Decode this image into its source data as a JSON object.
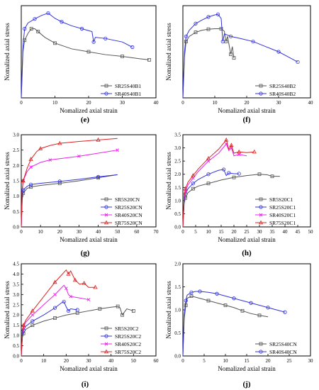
{
  "figure": {
    "panels": [
      {
        "letter": "(e)"
      },
      {
        "letter": "(f)"
      },
      {
        "letter": "(g)"
      },
      {
        "letter": "(h)"
      },
      {
        "letter": "(i)"
      },
      {
        "letter": "(j)"
      }
    ]
  },
  "chart_data": [
    {
      "panel": "e",
      "type": "line",
      "xlabel": "Nomalized axial strain",
      "ylabel": "Nomalized axial stress",
      "xlim": [
        0,
        40
      ],
      "ylim": [
        0,
        1.6
      ],
      "xticks": [
        0,
        10,
        20,
        30,
        40
      ],
      "yticks": [],
      "legend": {
        "position": "bottom-right"
      },
      "series": [
        {
          "name": "SR25S40B1",
          "color": "#555555",
          "marker": "square",
          "x": [
            0,
            0.5,
            1,
            2,
            3,
            4,
            5,
            7,
            10,
            15,
            20,
            25,
            30,
            35,
            38
          ],
          "y": [
            0,
            0.8,
            1.0,
            1.12,
            1.2,
            1.2,
            1.15,
            1.05,
            0.95,
            0.85,
            0.8,
            0.75,
            0.72,
            0.68,
            0.66
          ]
        },
        {
          "name": "SR40S40B1",
          "color": "#3333dd",
          "marker": "circle",
          "x": [
            0,
            0.5,
            1,
            2,
            4,
            6,
            8,
            10,
            12,
            15,
            18,
            21,
            21.5,
            22,
            25,
            30,
            33
          ],
          "y": [
            0,
            0.9,
            1.2,
            1.3,
            1.37,
            1.43,
            1.47,
            1.38,
            1.32,
            1.25,
            1.2,
            1.15,
            0.97,
            1.05,
            1.03,
            0.97,
            0.88
          ]
        }
      ]
    },
    {
      "panel": "f",
      "type": "line",
      "xlabel": "Nomalized axial strain",
      "ylabel": "Nomalized axial stress",
      "xlim": [
        0,
        40
      ],
      "ylim": [
        0,
        1.8
      ],
      "xticks": [
        0,
        10,
        20,
        30,
        40
      ],
      "yticks": [],
      "legend": {
        "position": "bottom-right"
      },
      "series": [
        {
          "name": "SR25S40B2",
          "color": "#555555",
          "marker": "square",
          "x": [
            0,
            0.5,
            1,
            2,
            4,
            6,
            8,
            10,
            12,
            13,
            13.5,
            14,
            15,
            15.5,
            16
          ],
          "y": [
            0,
            0.8,
            1.1,
            1.2,
            1.28,
            1.32,
            1.34,
            1.35,
            1.35,
            1.3,
            1.1,
            1.2,
            0.85,
            1.0,
            0.78
          ]
        },
        {
          "name": "SR40S40B2",
          "color": "#3333dd",
          "marker": "circle",
          "x": [
            0,
            0.5,
            1,
            2,
            4,
            6,
            8,
            10,
            11,
            12,
            12.5,
            13,
            15,
            18,
            22,
            26,
            30,
            33,
            36
          ],
          "y": [
            0,
            0.9,
            1.2,
            1.32,
            1.45,
            1.52,
            1.58,
            1.62,
            1.63,
            1.55,
            1.1,
            1.25,
            1.2,
            1.16,
            1.1,
            1.0,
            0.9,
            0.8,
            0.7
          ]
        }
      ]
    },
    {
      "panel": "g",
      "type": "line",
      "xlabel": "Nomalized axial strain",
      "ylabel": "Nomalized axial stress",
      "xlim": [
        0,
        70
      ],
      "ylim": [
        0,
        3.0
      ],
      "xticks": [
        0,
        10,
        20,
        30,
        40,
        50,
        60,
        70
      ],
      "yticks": [
        0,
        0.5,
        1.0,
        1.5,
        2.0,
        2.5,
        3.0
      ],
      "legend": {
        "position": "bottom-right"
      },
      "series": [
        {
          "name": "SR5S20CN",
          "color": "#555555",
          "marker": "square",
          "x": [
            0,
            0.5,
            1,
            3,
            5,
            10,
            20,
            30,
            40,
            50
          ],
          "y": [
            0,
            0.9,
            1.1,
            1.25,
            1.3,
            1.35,
            1.42,
            1.5,
            1.6,
            1.7
          ]
        },
        {
          "name": "SR25S20CN",
          "color": "#3333dd",
          "marker": "circle",
          "x": [
            0,
            0.5,
            1,
            3,
            5,
            10,
            20,
            30,
            40,
            50
          ],
          "y": [
            0,
            1.0,
            1.2,
            1.32,
            1.38,
            1.42,
            1.48,
            1.55,
            1.63,
            1.7
          ]
        },
        {
          "name": "SR40S20CN",
          "color": "#ee22ee",
          "marker": "x",
          "x": [
            0,
            0.5,
            1,
            3,
            5,
            10,
            15,
            20,
            30,
            40,
            50
          ],
          "y": [
            0,
            1.2,
            1.5,
            1.8,
            1.95,
            2.1,
            2.18,
            2.22,
            2.3,
            2.4,
            2.5
          ]
        },
        {
          "name": "SR75S20CN",
          "color": "#dd2222",
          "marker": "triangle",
          "x": [
            0,
            0.5,
            1,
            3,
            5,
            8,
            10,
            15,
            20,
            30,
            40,
            50
          ],
          "y": [
            0,
            1.2,
            1.5,
            1.9,
            2.2,
            2.45,
            2.55,
            2.65,
            2.72,
            2.78,
            2.83,
            2.88
          ]
        }
      ]
    },
    {
      "panel": "h",
      "type": "line",
      "xlabel": "Nomalized axial strain",
      "ylabel": "Nomalized axial stress",
      "xlim": [
        0,
        50
      ],
      "ylim": [
        0,
        3.5
      ],
      "xticks": [
        0,
        5,
        10,
        15,
        20,
        25,
        30,
        35,
        40,
        45,
        50
      ],
      "yticks": [
        0,
        0.5,
        1.0,
        1.5,
        2.0,
        2.5,
        3.0,
        3.5
      ],
      "legend": {
        "position": "bottom-right"
      },
      "series": [
        {
          "name": "SR5S20C1",
          "color": "#555555",
          "marker": "square",
          "x": [
            0,
            0.5,
            1,
            2,
            4,
            6,
            10,
            15,
            20,
            25,
            30,
            33,
            35,
            38
          ],
          "y": [
            0,
            0.9,
            1.1,
            1.3,
            1.45,
            1.55,
            1.65,
            1.78,
            1.88,
            1.95,
            2.0,
            1.98,
            1.92,
            1.92
          ]
        },
        {
          "name": "SR25S20C1",
          "color": "#3333dd",
          "marker": "circle",
          "x": [
            0,
            0.5,
            1,
            2,
            4,
            6,
            10,
            14,
            16,
            17,
            18,
            20,
            22
          ],
          "y": [
            0,
            1.0,
            1.25,
            1.45,
            1.65,
            1.8,
            2.0,
            2.15,
            2.18,
            1.95,
            2.05,
            2.02,
            2.02
          ]
        },
        {
          "name": "SR40S20C1",
          "color": "#ee22ee",
          "marker": "x",
          "x": [
            0,
            0.5,
            1,
            2,
            4,
            6,
            10,
            14,
            17,
            18,
            19,
            20,
            22,
            25
          ],
          "y": [
            0,
            1.1,
            1.35,
            1.6,
            1.85,
            2.1,
            2.5,
            2.8,
            3.15,
            2.9,
            3.0,
            2.7,
            2.75,
            2.7
          ]
        },
        {
          "name": "SR75S20C1",
          "color": "#dd2222",
          "marker": "triangle",
          "x": [
            0,
            0.5,
            1,
            2,
            4,
            6,
            10,
            14,
            17,
            18,
            19,
            20,
            22,
            25,
            28
          ],
          "y": [
            0,
            1.2,
            1.45,
            1.7,
            1.95,
            2.2,
            2.6,
            2.95,
            3.3,
            2.95,
            3.1,
            2.8,
            2.85,
            2.82,
            2.85
          ]
        }
      ]
    },
    {
      "panel": "i",
      "type": "line",
      "xlabel": "Nomalized axial strain",
      "ylabel": "Nomalized axial stress",
      "xlim": [
        0,
        60
      ],
      "ylim": [
        0,
        4.5
      ],
      "xticks": [
        0,
        10,
        20,
        30,
        40,
        50,
        60
      ],
      "yticks": [
        0,
        0.5,
        1.0,
        1.5,
        2.0,
        2.5,
        3.0,
        3.5,
        4.0,
        4.5
      ],
      "legend": {
        "position": "bottom-right"
      },
      "series": [
        {
          "name": "SR5S20C2",
          "color": "#555555",
          "marker": "square",
          "x": [
            0,
            0.5,
            1,
            2,
            5,
            10,
            15,
            20,
            25,
            30,
            35,
            40,
            43,
            44,
            45,
            47,
            50
          ],
          "y": [
            0,
            0.9,
            1.1,
            1.3,
            1.5,
            1.7,
            1.85,
            2.0,
            2.1,
            2.2,
            2.3,
            2.38,
            2.42,
            2.35,
            2.0,
            2.3,
            2.2
          ]
        },
        {
          "name": "SR25S20C2",
          "color": "#3333dd",
          "marker": "circle",
          "x": [
            0,
            0.5,
            1,
            2,
            5,
            10,
            15,
            18,
            19,
            20,
            21,
            22,
            25
          ],
          "y": [
            0,
            1.0,
            1.25,
            1.45,
            1.7,
            2.0,
            2.35,
            2.6,
            2.65,
            2.4,
            2.2,
            2.3,
            2.25
          ]
        },
        {
          "name": "SR40S20C2",
          "color": "#ee22ee",
          "marker": "x",
          "x": [
            0,
            0.5,
            1,
            2,
            5,
            10,
            15,
            19,
            20,
            21,
            22,
            25,
            30
          ],
          "y": [
            0,
            1.1,
            1.4,
            1.65,
            2.0,
            2.5,
            3.0,
            3.45,
            3.3,
            3.0,
            2.9,
            2.85,
            2.75
          ]
        },
        {
          "name": "SR75S20C2",
          "color": "#dd2222",
          "marker": "triangle",
          "x": [
            0,
            0.5,
            1,
            2,
            5,
            10,
            15,
            20,
            21,
            22,
            24,
            26,
            28,
            30,
            33
          ],
          "y": [
            0,
            1.2,
            1.5,
            1.75,
            2.2,
            2.9,
            3.6,
            4.2,
            4.0,
            4.15,
            3.7,
            3.5,
            3.55,
            3.35,
            3.35
          ]
        }
      ]
    },
    {
      "panel": "j",
      "type": "line",
      "xlabel": "Nomalized axial strain",
      "ylabel": "Nomalized axial stress",
      "xlim": [
        0,
        30
      ],
      "ylim": [
        0,
        2.0
      ],
      "xticks": [
        0,
        5,
        10,
        15,
        20,
        25,
        30
      ],
      "yticks": [
        0,
        0.5,
        1.0,
        1.5,
        2.0
      ],
      "legend": {
        "position": "bottom-right"
      },
      "series": [
        {
          "name": "SR25S40CN",
          "color": "#555555",
          "marker": "square",
          "x": [
            0,
            0.3,
            0.7,
            1,
            2,
            4,
            6,
            8,
            10,
            12,
            14,
            16,
            18,
            20
          ],
          "y": [
            0,
            0.8,
            1.1,
            1.25,
            1.3,
            1.25,
            1.2,
            1.15,
            1.1,
            1.05,
            0.98,
            0.92,
            0.88,
            0.85
          ]
        },
        {
          "name": "SR40S40CN",
          "color": "#3333dd",
          "marker": "circle",
          "x": [
            0,
            0.3,
            0.7,
            1,
            2,
            3,
            4,
            6,
            8,
            10,
            12,
            14,
            16,
            18,
            20,
            22,
            24
          ],
          "y": [
            0,
            0.9,
            1.2,
            1.32,
            1.38,
            1.4,
            1.4,
            1.38,
            1.35,
            1.3,
            1.25,
            1.2,
            1.15,
            1.1,
            1.05,
            1.0,
            0.95
          ]
        }
      ]
    }
  ]
}
